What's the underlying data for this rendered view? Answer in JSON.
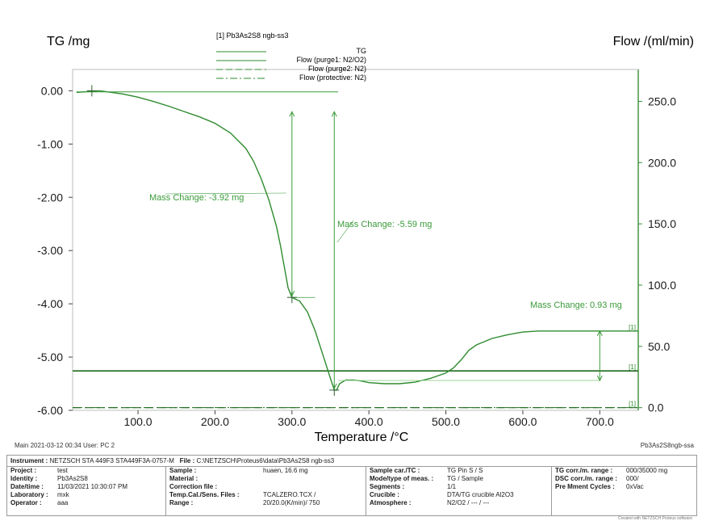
{
  "chart_data": {
    "type": "line",
    "title": "[1] Pb3As2S8 ngb-ss3",
    "xlabel": "Temperature /°C",
    "ylabel_left": "TG /mg",
    "ylabel_right": "Flow /(ml/min)",
    "xlim": [
      15,
      750
    ],
    "ylim_left": [
      -6.0,
      0.4
    ],
    "ylim_right": [
      -2.2,
      276
    ],
    "x_ticks": [
      100,
      200,
      300,
      400,
      500,
      600,
      700
    ],
    "x_tick_labels": [
      "100.0",
      "200.0",
      "300.0",
      "400.0",
      "500.0",
      "600.0",
      "700.0"
    ],
    "y_left_ticks": [
      0,
      -1,
      -2,
      -3,
      -4,
      -5,
      -6
    ],
    "y_left_tick_labels": [
      "0.00",
      "-1.00",
      "-2.00",
      "-3.00",
      "-4.00",
      "-5.00",
      "-6.00"
    ],
    "y_right_ticks": [
      250,
      200,
      150,
      100,
      50,
      0
    ],
    "y_right_tick_labels": [
      "250.0",
      "200.0",
      "150.0",
      "100.0",
      "50.0",
      "0.0"
    ],
    "legend": [
      "TG",
      "Flow (purge1: N2/O2)",
      "Flow (purge2: N2)",
      "Flow (protective: N2)"
    ],
    "legend_position": "top-center",
    "series": [
      {
        "name": "TG",
        "axis": "left",
        "x": [
          20,
          30,
          40,
          50,
          60,
          80,
          100,
          120,
          140,
          160,
          180,
          200,
          220,
          240,
          250,
          260,
          270,
          280,
          285,
          290,
          295,
          300,
          310,
          320,
          330,
          340,
          350,
          355,
          358,
          362,
          370,
          380,
          390,
          400,
          420,
          440,
          460,
          480,
          500,
          510,
          520,
          530,
          540,
          560,
          580,
          600,
          620,
          650,
          700,
          750
        ],
        "values": [
          -0.03,
          -0.02,
          -0.01,
          0.0,
          -0.02,
          -0.06,
          -0.12,
          -0.2,
          -0.29,
          -0.39,
          -0.49,
          -0.61,
          -0.79,
          -1.08,
          -1.32,
          -1.65,
          -2.05,
          -2.55,
          -2.9,
          -3.3,
          -3.7,
          -3.88,
          -3.95,
          -4.15,
          -4.5,
          -4.95,
          -5.4,
          -5.62,
          -5.62,
          -5.5,
          -5.43,
          -5.43,
          -5.45,
          -5.48,
          -5.5,
          -5.5,
          -5.47,
          -5.4,
          -5.3,
          -5.2,
          -5.05,
          -4.87,
          -4.77,
          -4.65,
          -4.58,
          -4.53,
          -4.51,
          -4.51,
          -4.51,
          -4.51
        ]
      },
      {
        "name": "Flow (purge1: N2/O2)",
        "axis": "right",
        "x": [
          15,
          750
        ],
        "values": [
          30,
          30
        ]
      },
      {
        "name": "Flow (purge2: N2)",
        "axis": "right",
        "x": [
          15,
          750
        ],
        "values": [
          0,
          0
        ]
      },
      {
        "name": "Flow (protective: N2)",
        "axis": "right",
        "x": [
          15,
          750
        ],
        "values": [
          0,
          0
        ]
      }
    ],
    "annotations": [
      {
        "text": "Mass Change: -3.92 mg",
        "from": [
          300,
          -0.06
        ],
        "to": [
          300,
          -3.88
        ]
      },
      {
        "text": "Mass Change: -5.59 mg",
        "from": [
          355,
          -0.06
        ],
        "to": [
          355,
          -5.62
        ]
      },
      {
        "text": "Mass Change: 0.93 mg",
        "from": [
          700,
          -4.51
        ],
        "to": [
          700,
          -5.44
        ]
      }
    ],
    "curve_markers": [
      "[1]",
      "[1]",
      "[1]"
    ],
    "colors": {
      "tg": "#2e8b2e",
      "flow": "#1f6b1f",
      "right_axis": "#3a8f3a",
      "annotation": "#3a9a3a"
    }
  },
  "footer": {
    "main_line": "Main   2021-03-12 00:34   User: PC 2",
    "file_id": "Pb3As2S8ngb-ssa"
  },
  "info": {
    "instrument_label": "Instrument :",
    "instrument_value": "NETZSCH STA 449F3 STA449F3A-0757-M",
    "file_label": "File :",
    "file_value": "C:\\NETZSCH\\Proteus6\\data\\Pb3As2S8 ngb-ss3",
    "col1": [
      {
        "k": "Project :",
        "v": "test"
      },
      {
        "k": "Identity :",
        "v": "Pb3As2S8"
      },
      {
        "k": "Date/time :",
        "v": "11/03/2021 10:30:07 PM"
      },
      {
        "k": "Laboratory :",
        "v": "mxk"
      },
      {
        "k": "Operator :",
        "v": "aaa"
      }
    ],
    "col2": [
      {
        "k": "Sample :",
        "v": "huaen, 16.6 mg"
      },
      {
        "k": "Material :",
        "v": ""
      },
      {
        "k": "Correction file :",
        "v": ""
      },
      {
        "k": "Temp.Cal./Sens. Files :",
        "v": "TCALZERO.TCX /"
      },
      {
        "k": "Range :",
        "v": "20/20.0(K/min)/ 750"
      }
    ],
    "col3": [
      {
        "k": "Sample car./TC :",
        "v": "TG Pin S / S"
      },
      {
        "k": "Mode/type of meas. :",
        "v": "TG / Sample"
      },
      {
        "k": "Segments :",
        "v": "1/1"
      },
      {
        "k": "Crucible :",
        "v": "DTA/TG crucible Al2O3"
      },
      {
        "k": "Atmosphere :",
        "v": "N2/O2 / --- / ---"
      }
    ],
    "col4": [
      {
        "k": "TG corr./m. range :",
        "v": "000/35000 mg"
      },
      {
        "k": "DSC corr./m. range :",
        "v": "000/"
      },
      {
        "k": "Pre Mment Cycles :",
        "v": "0xVac"
      }
    ]
  },
  "credit": "Created with NETZSCH Proteus software"
}
